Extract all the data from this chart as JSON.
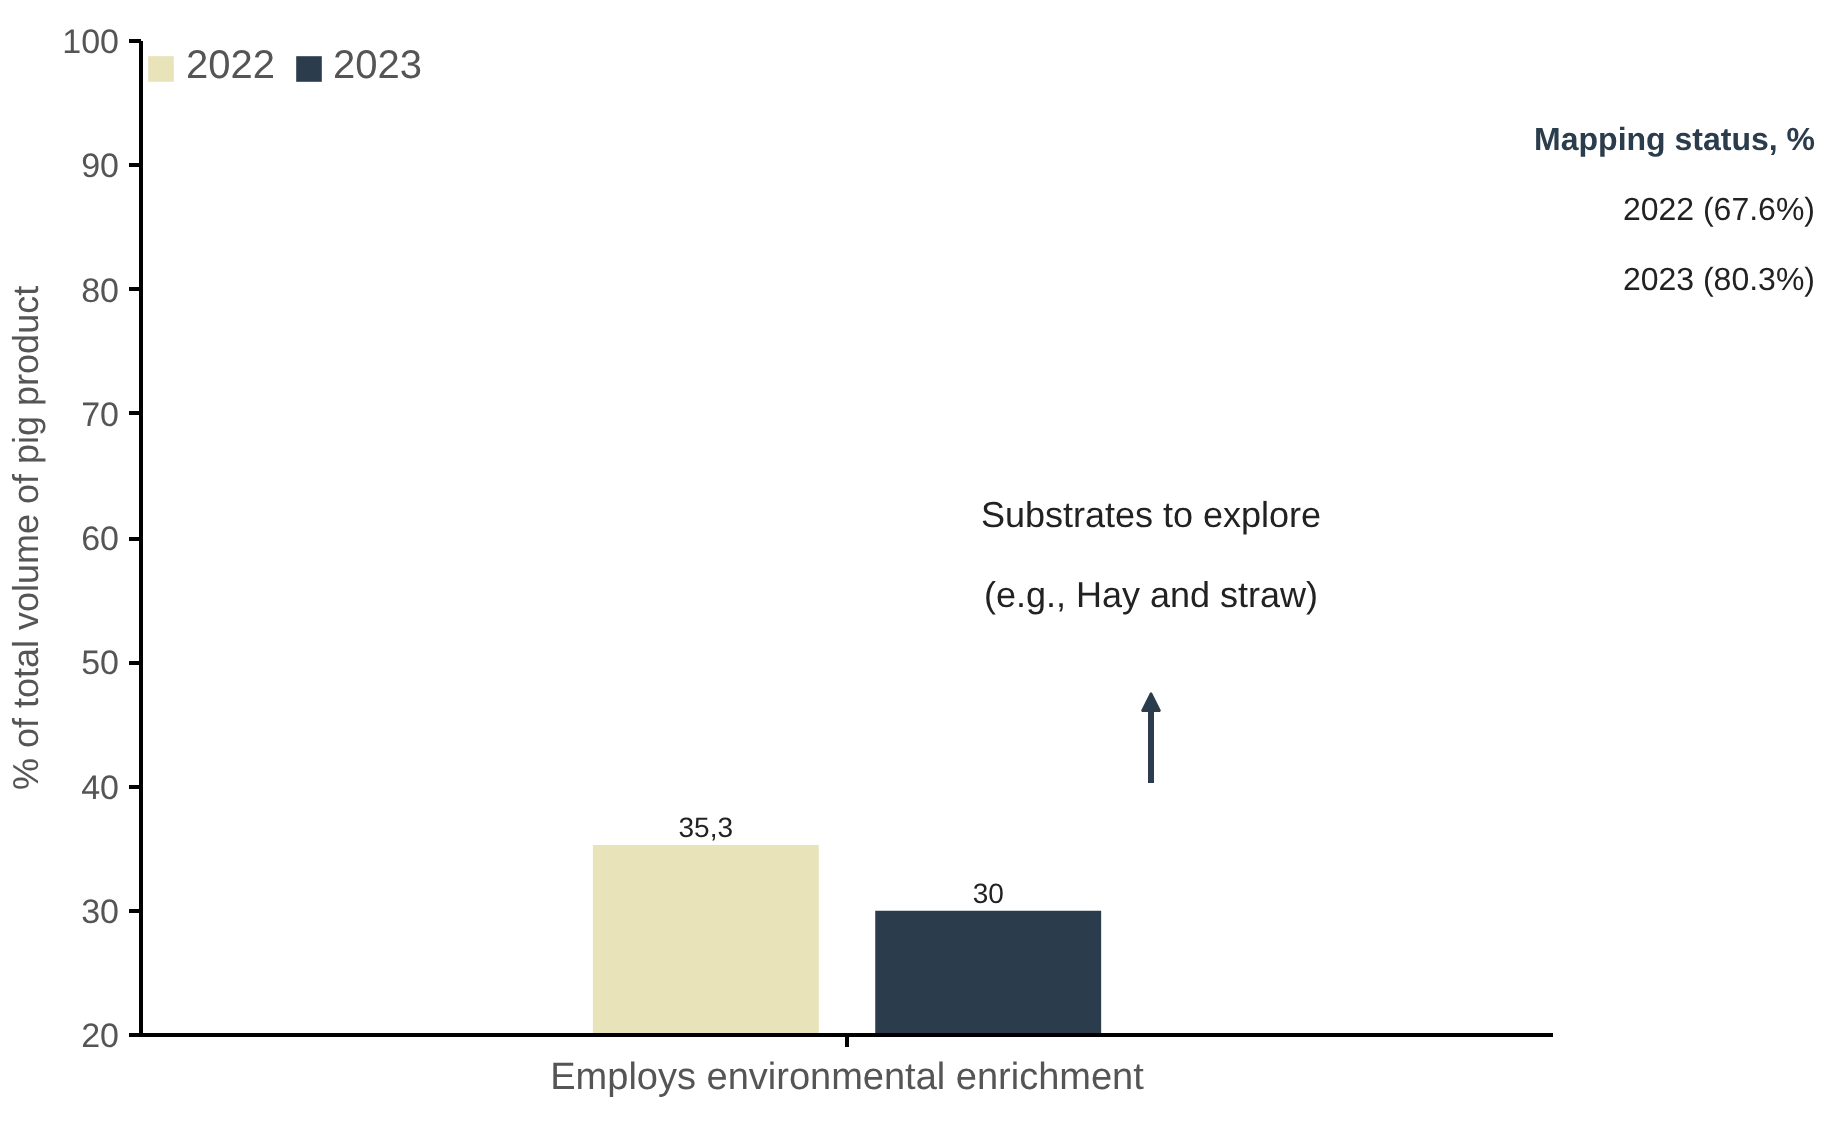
{
  "chart_data": {
    "type": "bar",
    "ylabel": "% of total volume of pig product",
    "categories": [
      "Employs environmental enrichment"
    ],
    "series": [
      {
        "name": "2022",
        "color": "#e8e3b8",
        "values": [
          35.3
        ],
        "value_labels": [
          "35,3"
        ]
      },
      {
        "name": "2023",
        "color": "#2b3d4c",
        "values": [
          30
        ],
        "value_labels": [
          "30"
        ]
      }
    ],
    "ylim": [
      20,
      100
    ],
    "yticks": [
      20,
      30,
      40,
      50,
      60,
      70,
      80,
      90,
      100
    ],
    "grid": false,
    "legend": "top left",
    "annotations": [
      "Mapping status, %",
      "2022 (67.6%)",
      "2023 (80.3%)",
      "Substrates to explore",
      "(e.g., Hay and straw)"
    ]
  }
}
